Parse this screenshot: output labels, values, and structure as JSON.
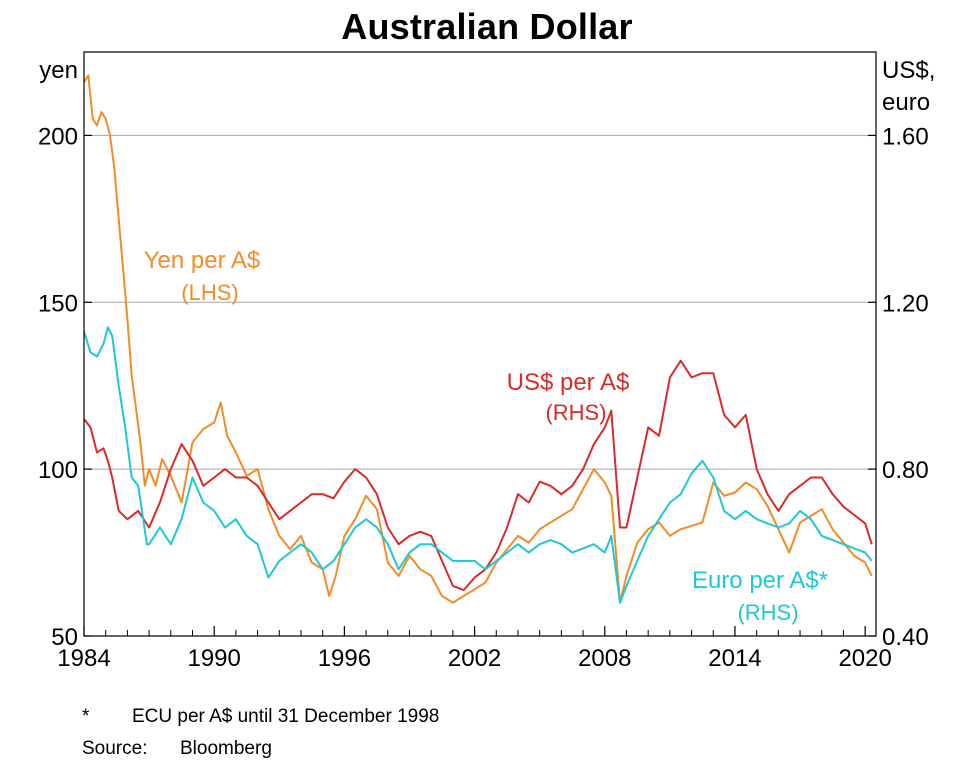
{
  "chart_data": {
    "type": "line",
    "title": "Australian Dollar",
    "left_axis_label": "yen",
    "right_axis_label_line1": "US$,",
    "right_axis_label_line2": "euro",
    "x_ticks": [
      "1984",
      "1990",
      "1996",
      "2002",
      "2008",
      "2014",
      "2020"
    ],
    "x_range": [
      1984,
      2020.5
    ],
    "left_ticks": [
      "50",
      "100",
      "150",
      "200"
    ],
    "left_range": [
      50,
      225
    ],
    "right_ticks": [
      "0.40",
      "0.80",
      "1.20",
      "1.60"
    ],
    "right_range": [
      0.4,
      1.8
    ],
    "gridlines": [
      100,
      150,
      200
    ],
    "series": [
      {
        "name": "Yen per A$",
        "axis": "LHS",
        "label_line1": "Yen per A$",
        "label_line2": "(LHS)",
        "color": "#f28c28",
        "points": [
          [
            1984.0,
            216
          ],
          [
            1984.2,
            218
          ],
          [
            1984.4,
            205
          ],
          [
            1984.6,
            203
          ],
          [
            1984.8,
            207
          ],
          [
            1985.0,
            205
          ],
          [
            1985.2,
            200
          ],
          [
            1985.4,
            190
          ],
          [
            1985.6,
            175
          ],
          [
            1985.8,
            160
          ],
          [
            1986.0,
            145
          ],
          [
            1986.2,
            128
          ],
          [
            1986.4,
            118
          ],
          [
            1986.6,
            108
          ],
          [
            1986.8,
            95
          ],
          [
            1987.0,
            100
          ],
          [
            1987.3,
            95
          ],
          [
            1987.6,
            103
          ],
          [
            1988.0,
            98
          ],
          [
            1988.5,
            90
          ],
          [
            1989.0,
            108
          ],
          [
            1989.5,
            112
          ],
          [
            1990.0,
            114
          ],
          [
            1990.3,
            120
          ],
          [
            1990.6,
            110
          ],
          [
            1991.0,
            105
          ],
          [
            1991.5,
            98
          ],
          [
            1992.0,
            100
          ],
          [
            1992.5,
            88
          ],
          [
            1993.0,
            80
          ],
          [
            1993.5,
            76
          ],
          [
            1994.0,
            80
          ],
          [
            1994.5,
            72
          ],
          [
            1995.0,
            70
          ],
          [
            1995.3,
            62
          ],
          [
            1995.6,
            68
          ],
          [
            1996.0,
            80
          ],
          [
            1996.5,
            85
          ],
          [
            1997.0,
            92
          ],
          [
            1997.5,
            88
          ],
          [
            1998.0,
            72
          ],
          [
            1998.5,
            68
          ],
          [
            1999.0,
            74
          ],
          [
            1999.5,
            70
          ],
          [
            2000.0,
            68
          ],
          [
            2000.5,
            62
          ],
          [
            2001.0,
            60
          ],
          [
            2001.5,
            62
          ],
          [
            2002.0,
            64
          ],
          [
            2002.5,
            66
          ],
          [
            2003.0,
            72
          ],
          [
            2003.5,
            76
          ],
          [
            2004.0,
            80
          ],
          [
            2004.5,
            78
          ],
          [
            2005.0,
            82
          ],
          [
            2005.5,
            84
          ],
          [
            2006.0,
            86
          ],
          [
            2006.5,
            88
          ],
          [
            2007.0,
            94
          ],
          [
            2007.5,
            100
          ],
          [
            2008.0,
            96
          ],
          [
            2008.3,
            92
          ],
          [
            2008.7,
            60
          ],
          [
            2009.0,
            68
          ],
          [
            2009.5,
            78
          ],
          [
            2010.0,
            82
          ],
          [
            2010.5,
            84
          ],
          [
            2011.0,
            80
          ],
          [
            2011.5,
            82
          ],
          [
            2012.0,
            83
          ],
          [
            2012.5,
            84
          ],
          [
            2013.0,
            96
          ],
          [
            2013.5,
            92
          ],
          [
            2014.0,
            93
          ],
          [
            2014.5,
            96
          ],
          [
            2015.0,
            94
          ],
          [
            2015.5,
            89
          ],
          [
            2016.0,
            82
          ],
          [
            2016.5,
            75
          ],
          [
            2017.0,
            84
          ],
          [
            2017.5,
            86
          ],
          [
            2018.0,
            88
          ],
          [
            2018.5,
            82
          ],
          [
            2019.0,
            78
          ],
          [
            2019.5,
            74
          ],
          [
            2020.0,
            72
          ],
          [
            2020.3,
            68
          ]
        ]
      },
      {
        "name": "US$ per A$",
        "axis": "RHS",
        "label_line1": "US$ per A$",
        "label_line2": "(RHS)",
        "color": "#d92b2b",
        "points": [
          [
            1984.0,
            0.92
          ],
          [
            1984.3,
            0.9
          ],
          [
            1984.6,
            0.84
          ],
          [
            1984.9,
            0.85
          ],
          [
            1985.1,
            0.82
          ],
          [
            1985.3,
            0.78
          ],
          [
            1985.6,
            0.7
          ],
          [
            1986.0,
            0.68
          ],
          [
            1986.5,
            0.7
          ],
          [
            1987.0,
            0.66
          ],
          [
            1987.5,
            0.72
          ],
          [
            1988.0,
            0.8
          ],
          [
            1988.5,
            0.86
          ],
          [
            1989.0,
            0.82
          ],
          [
            1989.5,
            0.76
          ],
          [
            1990.0,
            0.78
          ],
          [
            1990.5,
            0.8
          ],
          [
            1991.0,
            0.78
          ],
          [
            1991.5,
            0.78
          ],
          [
            1992.0,
            0.76
          ],
          [
            1992.5,
            0.72
          ],
          [
            1993.0,
            0.68
          ],
          [
            1993.5,
            0.7
          ],
          [
            1994.0,
            0.72
          ],
          [
            1994.5,
            0.74
          ],
          [
            1995.0,
            0.74
          ],
          [
            1995.5,
            0.73
          ],
          [
            1996.0,
            0.77
          ],
          [
            1996.5,
            0.8
          ],
          [
            1997.0,
            0.78
          ],
          [
            1997.5,
            0.74
          ],
          [
            1998.0,
            0.66
          ],
          [
            1998.5,
            0.62
          ],
          [
            1999.0,
            0.64
          ],
          [
            1999.5,
            0.65
          ],
          [
            2000.0,
            0.64
          ],
          [
            2000.5,
            0.58
          ],
          [
            2001.0,
            0.52
          ],
          [
            2001.5,
            0.51
          ],
          [
            2002.0,
            0.54
          ],
          [
            2002.5,
            0.56
          ],
          [
            2003.0,
            0.6
          ],
          [
            2003.5,
            0.66
          ],
          [
            2004.0,
            0.74
          ],
          [
            2004.5,
            0.72
          ],
          [
            2005.0,
            0.77
          ],
          [
            2005.5,
            0.76
          ],
          [
            2006.0,
            0.74
          ],
          [
            2006.5,
            0.76
          ],
          [
            2007.0,
            0.8
          ],
          [
            2007.5,
            0.86
          ],
          [
            2008.0,
            0.9
          ],
          [
            2008.3,
            0.94
          ],
          [
            2008.7,
            0.66
          ],
          [
            2009.0,
            0.66
          ],
          [
            2009.5,
            0.78
          ],
          [
            2010.0,
            0.9
          ],
          [
            2010.5,
            0.88
          ],
          [
            2011.0,
            1.02
          ],
          [
            2011.5,
            1.06
          ],
          [
            2012.0,
            1.02
          ],
          [
            2012.5,
            1.03
          ],
          [
            2013.0,
            1.03
          ],
          [
            2013.5,
            0.93
          ],
          [
            2014.0,
            0.9
          ],
          [
            2014.5,
            0.93
          ],
          [
            2015.0,
            0.8
          ],
          [
            2015.5,
            0.74
          ],
          [
            2016.0,
            0.7
          ],
          [
            2016.5,
            0.74
          ],
          [
            2017.0,
            0.76
          ],
          [
            2017.5,
            0.78
          ],
          [
            2018.0,
            0.78
          ],
          [
            2018.5,
            0.74
          ],
          [
            2019.0,
            0.71
          ],
          [
            2019.5,
            0.69
          ],
          [
            2020.0,
            0.67
          ],
          [
            2020.3,
            0.62
          ]
        ]
      },
      {
        "name": "Euro per A$*",
        "axis": "RHS",
        "label_line1": "Euro per A$*",
        "label_line2": "(RHS)",
        "color": "#1ec8d4",
        "points": [
          [
            1984.0,
            1.13
          ],
          [
            1984.3,
            1.08
          ],
          [
            1984.6,
            1.07
          ],
          [
            1984.9,
            1.1
          ],
          [
            1985.1,
            1.14
          ],
          [
            1985.3,
            1.12
          ],
          [
            1985.6,
            1.0
          ],
          [
            1985.9,
            0.9
          ],
          [
            1986.2,
            0.78
          ],
          [
            1986.5,
            0.76
          ],
          [
            1986.9,
            0.62
          ],
          [
            1987.0,
            0.62
          ],
          [
            1987.5,
            0.66
          ],
          [
            1988.0,
            0.62
          ],
          [
            1988.5,
            0.68
          ],
          [
            1989.0,
            0.78
          ],
          [
            1989.5,
            0.72
          ],
          [
            1990.0,
            0.7
          ],
          [
            1990.5,
            0.66
          ],
          [
            1991.0,
            0.68
          ],
          [
            1991.5,
            0.64
          ],
          [
            1992.0,
            0.62
          ],
          [
            1992.5,
            0.54
          ],
          [
            1993.0,
            0.58
          ],
          [
            1993.5,
            0.6
          ],
          [
            1994.0,
            0.62
          ],
          [
            1994.5,
            0.6
          ],
          [
            1995.0,
            0.56
          ],
          [
            1995.5,
            0.58
          ],
          [
            1996.0,
            0.62
          ],
          [
            1996.5,
            0.66
          ],
          [
            1997.0,
            0.68
          ],
          [
            1997.5,
            0.66
          ],
          [
            1998.0,
            0.62
          ],
          [
            1998.5,
            0.56
          ],
          [
            1999.0,
            0.6
          ],
          [
            1999.5,
            0.62
          ],
          [
            2000.0,
            0.62
          ],
          [
            2000.5,
            0.6
          ],
          [
            2001.0,
            0.58
          ],
          [
            2001.5,
            0.58
          ],
          [
            2002.0,
            0.58
          ],
          [
            2002.5,
            0.56
          ],
          [
            2003.0,
            0.58
          ],
          [
            2003.5,
            0.6
          ],
          [
            2004.0,
            0.62
          ],
          [
            2004.5,
            0.6
          ],
          [
            2005.0,
            0.62
          ],
          [
            2005.5,
            0.63
          ],
          [
            2006.0,
            0.62
          ],
          [
            2006.5,
            0.6
          ],
          [
            2007.0,
            0.61
          ],
          [
            2007.5,
            0.62
          ],
          [
            2008.0,
            0.6
          ],
          [
            2008.3,
            0.64
          ],
          [
            2008.7,
            0.48
          ],
          [
            2009.0,
            0.52
          ],
          [
            2009.5,
            0.58
          ],
          [
            2010.0,
            0.64
          ],
          [
            2010.5,
            0.68
          ],
          [
            2011.0,
            0.72
          ],
          [
            2011.5,
            0.74
          ],
          [
            2012.0,
            0.79
          ],
          [
            2012.5,
            0.82
          ],
          [
            2013.0,
            0.78
          ],
          [
            2013.5,
            0.7
          ],
          [
            2014.0,
            0.68
          ],
          [
            2014.5,
            0.7
          ],
          [
            2015.0,
            0.68
          ],
          [
            2015.5,
            0.67
          ],
          [
            2016.0,
            0.66
          ],
          [
            2016.5,
            0.67
          ],
          [
            2017.0,
            0.7
          ],
          [
            2017.5,
            0.68
          ],
          [
            2018.0,
            0.64
          ],
          [
            2018.5,
            0.63
          ],
          [
            2019.0,
            0.62
          ],
          [
            2019.5,
            0.61
          ],
          [
            2020.0,
            0.6
          ],
          [
            2020.3,
            0.58
          ]
        ]
      }
    ],
    "footnote_mark": "*",
    "footnote_text": "ECU per A$ until 31 December 1998",
    "source_label": "Source:",
    "source_text": "Bloomberg"
  }
}
